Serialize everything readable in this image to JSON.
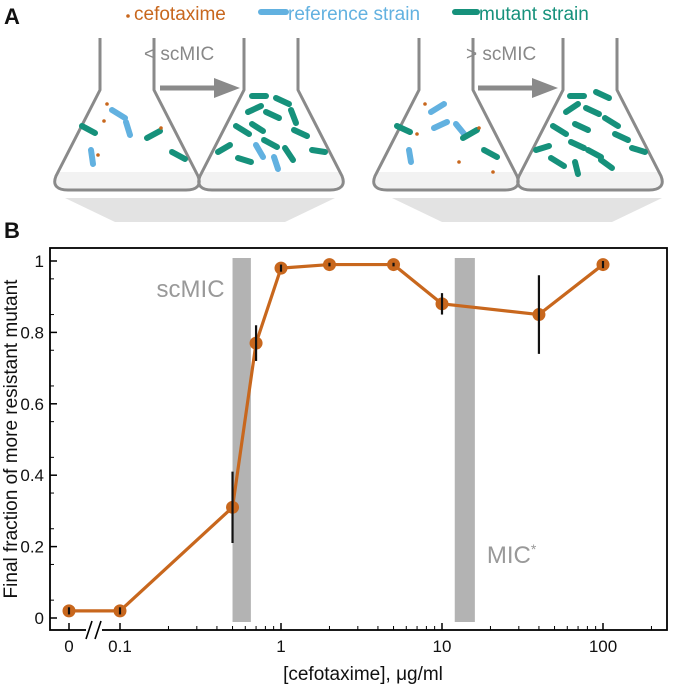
{
  "panel_a": {
    "label": "A",
    "legend": [
      {
        "text": "cefotaxime",
        "color": "#c8671d"
      },
      {
        "text": "reference strain",
        "color": "#62b1e0"
      },
      {
        "text": "mutant strain",
        "color": "#16917b"
      }
    ],
    "arrow_labels": [
      "< scMIC",
      "> scMIC"
    ]
  },
  "panel_b": {
    "label": "B"
  },
  "chart_data": {
    "type": "line",
    "x_scale": "log",
    "xlabel": "[cefotaxime], μg/ml",
    "ylabel": "Final fraction of more resistant mutant",
    "ylim": [
      0,
      1
    ],
    "x_ticks": [
      "0",
      "0.1",
      "1",
      "10",
      "100"
    ],
    "y_ticks": [
      "0",
      "0.2",
      "0.4",
      "0.6",
      "0.8",
      "1"
    ],
    "series": [
      {
        "color": "#c8671d",
        "points": [
          {
            "x": 0,
            "y": 0.02,
            "err": 0.01
          },
          {
            "x": 0.1,
            "y": 0.02,
            "err": 0.01
          },
          {
            "x": 0.5,
            "y": 0.31,
            "err": 0.1
          },
          {
            "x": 0.7,
            "y": 0.77,
            "err": 0.05
          },
          {
            "x": 1,
            "y": 0.98,
            "err": 0.01
          },
          {
            "x": 2,
            "y": 0.99,
            "err": 0.005
          },
          {
            "x": 5,
            "y": 0.99,
            "err": 0.005
          },
          {
            "x": 10,
            "y": 0.88,
            "err": 0.03
          },
          {
            "x": 40,
            "y": 0.85,
            "err": 0.11
          },
          {
            "x": 100,
            "y": 0.99,
            "err": 0.01
          }
        ]
      }
    ],
    "bands": [
      {
        "label": "scMIC",
        "x_range": [
          0.5,
          0.65
        ],
        "color": "#b3b3b3"
      },
      {
        "label": "MIC",
        "superscript": "*",
        "x_range": [
          12,
          16
        ],
        "color": "#b3b3b3"
      }
    ],
    "axis_break": "//"
  }
}
